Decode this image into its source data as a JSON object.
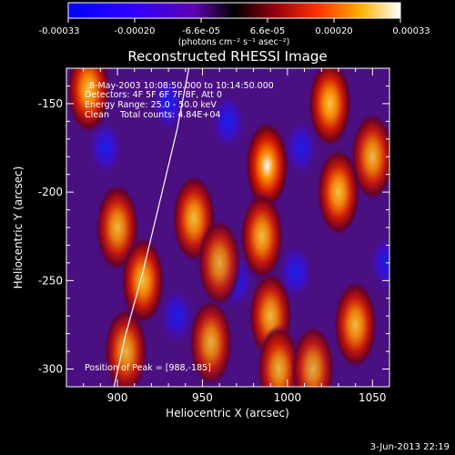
{
  "colorbar": {
    "ticks": [
      "-0.00033",
      "-0.00020",
      "-6.6e-05",
      "6.6e-05",
      "0.00020",
      "0.00033"
    ],
    "units_line": "(photons cm⁻² s⁻¹ asec⁻²)"
  },
  "plot": {
    "title": "Reconstructed RHESSI Image",
    "info": [
      "8-May-2003 10:08:50.000 to 10:14:50.000",
      "Detectors: 4F 5F 6F 7F 8F, Att 0",
      "Energy Range: 25.0 - 50.0 keV",
      "Clean    Total counts: 4.84E+04"
    ],
    "peak_text": "Position of Peak = [988,-185]",
    "footer_date": "3-Jun-2013 22:19"
  },
  "chart_data": {
    "type": "heatmap",
    "title": "Reconstructed RHESSI Image",
    "xlabel": "Heliocentric X (arcsec)",
    "ylabel": "Heliocentric Y (arcsec)",
    "xlim": [
      870,
      1060
    ],
    "ylim": [
      -310,
      -130
    ],
    "xticks": [
      900,
      950,
      1000,
      1050
    ],
    "yticks": [
      -150,
      -200,
      -250,
      -300
    ],
    "colorbar_range": [
      -0.00033,
      0.00033
    ],
    "colormap": [
      "#0000ff",
      "#5a00b0",
      "#000000",
      "#7a0030",
      "#e02000",
      "#ff9000",
      "#ffffff"
    ],
    "peak": [
      988,
      -185
    ],
    "limb_curve": {
      "x": [
        898,
        905,
        915,
        925,
        935,
        942
      ],
      "y": [
        -310,
        -280,
        -245,
        -205,
        -165,
        -130
      ]
    },
    "bright_blobs": [
      {
        "x": 883,
        "y": -142,
        "v": 0.9
      },
      {
        "x": 900,
        "y": -220,
        "v": 0.75
      },
      {
        "x": 915,
        "y": -250,
        "v": 0.85
      },
      {
        "x": 905,
        "y": -290,
        "v": 0.7
      },
      {
        "x": 945,
        "y": -215,
        "v": 0.8
      },
      {
        "x": 955,
        "y": -285,
        "v": 0.65
      },
      {
        "x": 960,
        "y": -240,
        "v": 0.6
      },
      {
        "x": 988,
        "y": -185,
        "v": 1.0
      },
      {
        "x": 985,
        "y": -225,
        "v": 0.8
      },
      {
        "x": 990,
        "y": -270,
        "v": 0.75
      },
      {
        "x": 995,
        "y": -300,
        "v": 0.7
      },
      {
        "x": 1025,
        "y": -150,
        "v": 0.9
      },
      {
        "x": 1030,
        "y": -200,
        "v": 0.85
      },
      {
        "x": 1040,
        "y": -275,
        "v": 0.8
      },
      {
        "x": 1050,
        "y": -180,
        "v": 0.75
      },
      {
        "x": 1015,
        "y": -300,
        "v": 0.6
      }
    ],
    "dark_blobs": [
      {
        "x": 893,
        "y": -175,
        "v": -0.7
      },
      {
        "x": 930,
        "y": -150,
        "v": -0.8
      },
      {
        "x": 935,
        "y": -270,
        "v": -0.6
      },
      {
        "x": 965,
        "y": -160,
        "v": -0.75
      },
      {
        "x": 970,
        "y": -250,
        "v": -0.6
      },
      {
        "x": 1008,
        "y": -175,
        "v": -0.55
      },
      {
        "x": 1005,
        "y": -245,
        "v": -0.7
      },
      {
        "x": 1058,
        "y": -240,
        "v": -0.6
      }
    ]
  }
}
